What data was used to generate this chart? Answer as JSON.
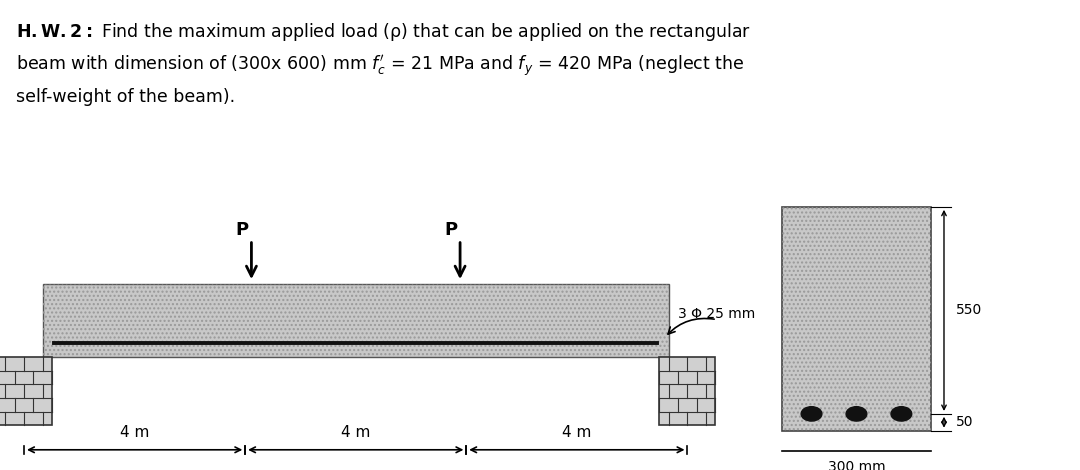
{
  "header_bg": "#4a72a8",
  "beam_fill": "#c8c8c8",
  "beam_edge": "#555555",
  "support_fill": "#d0d0d0",
  "support_edge": "#333333",
  "rebar_color": "#111111",
  "line_color": "#000000",
  "span_labels": [
    "4 m",
    "4 m",
    "4 m"
  ],
  "rebar_label": "3 Φ 25 mm",
  "dim_550": "550",
  "dim_50": "50",
  "dim_300": "300 mm"
}
